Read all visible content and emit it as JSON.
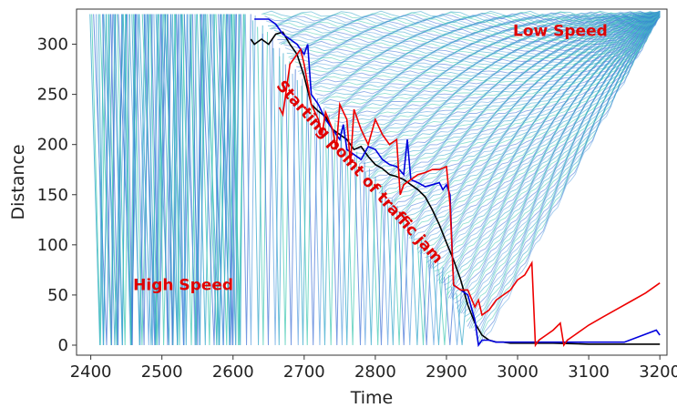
{
  "chart_data": {
    "type": "line",
    "title": "",
    "xlabel": "Time",
    "ylabel": "Distance",
    "xlim": [
      2380,
      3210
    ],
    "ylim": [
      -10,
      335
    ],
    "grid": false,
    "x_ticks": [
      2400,
      2500,
      2600,
      2700,
      2800,
      2900,
      3000,
      3100,
      3200
    ],
    "y_ticks": [
      0,
      50,
      100,
      150,
      200,
      250,
      300
    ],
    "annotations": [
      {
        "text": "Low Speed",
        "x": 3060,
        "y": 308,
        "rotation": 0,
        "size": 17
      },
      {
        "text": "High Speed",
        "x": 2530,
        "y": 55,
        "rotation": 0,
        "size": 17
      },
      {
        "text": "Starting point of traffic jam",
        "x": 2660,
        "y": 258,
        "rotation": 48,
        "size": 17
      }
    ],
    "background_trajectories": {
      "description_colors": [
        "#2aa3c8",
        "#3cc8b0",
        "#3d6fd6",
        "#5aa0e0"
      ],
      "high_speed_end": 2600,
      "shock_start": [
        2640,
        330
      ],
      "shock_end": [
        2950,
        0
      ]
    },
    "highlighted_series": [
      {
        "color": "#000000",
        "x": [
          2625,
          2630,
          2640,
          2650,
          2660,
          2670,
          2680,
          2690,
          2700,
          2710,
          2720,
          2730,
          2740,
          2750,
          2760,
          2770,
          2780,
          2790,
          2800,
          2810,
          2820,
          2830,
          2840,
          2850,
          2860,
          2870,
          2880,
          2890,
          2900,
          2910,
          2920,
          2930,
          2940,
          2950,
          2960,
          2970,
          2980,
          2990,
          3000,
          3050,
          3100,
          3150,
          3200
        ],
        "y": [
          305,
          300,
          305,
          300,
          310,
          312,
          300,
          290,
          268,
          240,
          233,
          228,
          215,
          210,
          205,
          195,
          198,
          188,
          180,
          176,
          170,
          168,
          165,
          160,
          155,
          148,
          135,
          120,
          102,
          85,
          65,
          40,
          22,
          10,
          5,
          3,
          3,
          2,
          2,
          2,
          1,
          1,
          1
        ]
      },
      {
        "color": "#0000dd",
        "x": [
          2630,
          2650,
          2660,
          2670,
          2680,
          2690,
          2700,
          2705,
          2710,
          2720,
          2730,
          2740,
          2750,
          2755,
          2760,
          2770,
          2780,
          2790,
          2800,
          2810,
          2820,
          2830,
          2840,
          2845,
          2850,
          2860,
          2870,
          2880,
          2890,
          2895,
          2900,
          2905,
          2910,
          2930,
          2940,
          2945,
          2950,
          2960,
          2970,
          2980,
          3000,
          3050,
          3100,
          3150,
          3195,
          3200
        ],
        "y": [
          325,
          325,
          320,
          310,
          305,
          300,
          290,
          300,
          250,
          240,
          225,
          215,
          205,
          220,
          195,
          190,
          185,
          198,
          195,
          185,
          180,
          178,
          170,
          205,
          165,
          162,
          158,
          160,
          162,
          155,
          160,
          150,
          60,
          50,
          25,
          0,
          5,
          5,
          3,
          3,
          3,
          3,
          3,
          3,
          15,
          10
        ]
      },
      {
        "color": "#ee0000",
        "x": [
          2665,
          2670,
          2680,
          2685,
          2690,
          2695,
          2700,
          2710,
          2720,
          2725,
          2730,
          2740,
          2745,
          2750,
          2760,
          2765,
          2770,
          2780,
          2790,
          2800,
          2810,
          2820,
          2830,
          2835,
          2840,
          2850,
          2860,
          2870,
          2880,
          2890,
          2900,
          2905,
          2910,
          2920,
          2930,
          2940,
          2945,
          2950,
          2960,
          2970,
          2980,
          2990,
          3000,
          3010,
          3020,
          3025,
          3030,
          3040,
          3050,
          3060,
          3065,
          3070,
          3080,
          3090,
          3100,
          3120,
          3140,
          3160,
          3180,
          3200
        ],
        "y": [
          237,
          230,
          280,
          285,
          290,
          295,
          280,
          240,
          225,
          210,
          232,
          215,
          195,
          240,
          225,
          180,
          235,
          215,
          200,
          225,
          210,
          200,
          205,
          150,
          160,
          165,
          170,
          172,
          175,
          175,
          178,
          140,
          60,
          55,
          55,
          38,
          45,
          30,
          35,
          45,
          50,
          55,
          65,
          70,
          82,
          0,
          5,
          10,
          15,
          22,
          0,
          5,
          10,
          15,
          20,
          28,
          36,
          44,
          52,
          62
        ]
      }
    ]
  }
}
